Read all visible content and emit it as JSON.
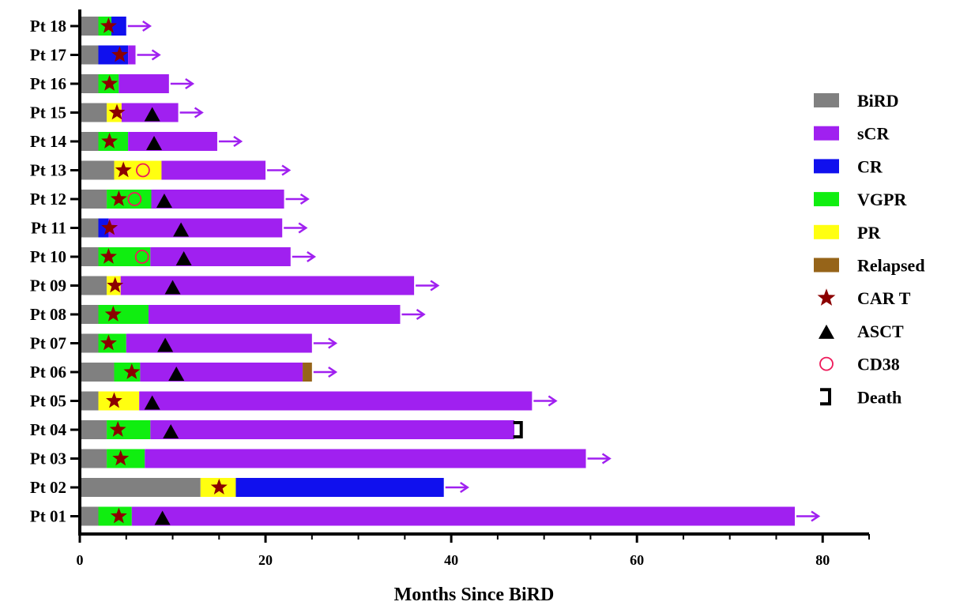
{
  "chart_data": {
    "type": "swimmer",
    "xlabel": "Months Since BiRD",
    "ylabel": "",
    "xlim": [
      0,
      85
    ],
    "xticks": [
      0,
      20,
      40,
      60,
      80
    ],
    "colors": {
      "BiRD": "#808080",
      "sCR": "#a020f0",
      "CR": "#1010ee",
      "VGPR": "#10ee10",
      "PR": "#ffff10",
      "Relapsed": "#966419",
      "CAR T": "#8b0000",
      "ASCT": "#000000",
      "CD38": "#ee1a5a",
      "Death": "#000000",
      "Ongoing": "#a020f0"
    },
    "legend": [
      {
        "label": "BiRD",
        "kind": "box",
        "key": "BiRD"
      },
      {
        "label": "sCR",
        "kind": "box",
        "key": "sCR"
      },
      {
        "label": "CR",
        "kind": "box",
        "key": "CR"
      },
      {
        "label": "VGPR",
        "kind": "box",
        "key": "VGPR"
      },
      {
        "label": "PR",
        "kind": "box",
        "key": "PR"
      },
      {
        "label": "Relapsed",
        "kind": "box",
        "key": "Relapsed"
      },
      {
        "label": "CAR T",
        "kind": "star",
        "key": "CAR T"
      },
      {
        "label": "ASCT",
        "kind": "triangle",
        "key": "ASCT"
      },
      {
        "label": "CD38",
        "kind": "circle",
        "key": "CD38"
      },
      {
        "label": "Death",
        "kind": "bracket",
        "key": "Death"
      }
    ],
    "patients": [
      {
        "label": "Pt 01",
        "segments": [
          [
            "BiRD",
            0,
            2
          ],
          [
            "VGPR",
            2,
            5.6
          ],
          [
            "sCR",
            5.6,
            77
          ]
        ],
        "car_t": 4.2,
        "asct": 8.9,
        "cd38": null,
        "ongoing": true,
        "death": null
      },
      {
        "label": "Pt 02",
        "segments": [
          [
            "BiRD",
            0,
            13
          ],
          [
            "PR",
            13,
            16.8
          ],
          [
            "CR",
            16.8,
            39.2
          ]
        ],
        "car_t": 15,
        "asct": null,
        "cd38": null,
        "ongoing": true,
        "death": null
      },
      {
        "label": "Pt 03",
        "segments": [
          [
            "BiRD",
            0,
            2.9
          ],
          [
            "VGPR",
            2.9,
            7
          ],
          [
            "sCR",
            7,
            54.5
          ]
        ],
        "car_t": 4.4,
        "asct": null,
        "cd38": null,
        "ongoing": true,
        "death": null
      },
      {
        "label": "Pt 04",
        "segments": [
          [
            "BiRD",
            0,
            2.9
          ],
          [
            "VGPR",
            2.9,
            7.6
          ],
          [
            "sCR",
            7.6,
            46.8
          ]
        ],
        "car_t": 4.1,
        "asct": 9.8,
        "cd38": null,
        "ongoing": false,
        "death": 47.2
      },
      {
        "label": "Pt 05",
        "segments": [
          [
            "BiRD",
            0,
            2
          ],
          [
            "PR",
            2,
            6.4
          ],
          [
            "sCR",
            6.4,
            48.7
          ]
        ],
        "car_t": 3.7,
        "asct": 7.8,
        "cd38": null,
        "ongoing": true,
        "death": null
      },
      {
        "label": "Pt 06",
        "segments": [
          [
            "BiRD",
            0,
            3.7
          ],
          [
            "VGPR",
            3.7,
            6.5
          ],
          [
            "sCR",
            6.5,
            24
          ],
          [
            "Relapsed",
            24,
            25
          ]
        ],
        "car_t": 5.6,
        "asct": 10.4,
        "cd38": null,
        "ongoing": true,
        "death": null
      },
      {
        "label": "Pt 07",
        "segments": [
          [
            "BiRD",
            0,
            2
          ],
          [
            "VGPR",
            2,
            5
          ],
          [
            "sCR",
            5,
            25
          ]
        ],
        "car_t": 3.1,
        "asct": 9.2,
        "cd38": null,
        "ongoing": true,
        "death": null
      },
      {
        "label": "Pt 08",
        "segments": [
          [
            "BiRD",
            0,
            2
          ],
          [
            "VGPR",
            2,
            7.4
          ],
          [
            "sCR",
            7.4,
            34.5
          ]
        ],
        "car_t": 3.6,
        "asct": null,
        "cd38": null,
        "ongoing": true,
        "death": null
      },
      {
        "label": "Pt 09",
        "segments": [
          [
            "BiRD",
            0,
            2.9
          ],
          [
            "PR",
            2.9,
            4.4
          ],
          [
            "sCR",
            4.4,
            36
          ]
        ],
        "car_t": 3.8,
        "asct": 10,
        "cd38": null,
        "ongoing": true,
        "death": null
      },
      {
        "label": "Pt 10",
        "segments": [
          [
            "BiRD",
            0,
            2
          ],
          [
            "VGPR",
            2,
            7.6
          ],
          [
            "sCR",
            7.6,
            22.7
          ]
        ],
        "car_t": 3.1,
        "asct": 11.2,
        "cd38": 6.7,
        "ongoing": true,
        "death": null
      },
      {
        "label": "Pt 11",
        "segments": [
          [
            "BiRD",
            0,
            2
          ],
          [
            "CR",
            2,
            3.1
          ],
          [
            "sCR",
            3.1,
            21.8
          ]
        ],
        "car_t": 3.2,
        "asct": 10.9,
        "cd38": null,
        "ongoing": true,
        "death": null
      },
      {
        "label": "Pt 12",
        "segments": [
          [
            "BiRD",
            0,
            2.9
          ],
          [
            "VGPR",
            2.9,
            7.7
          ],
          [
            "sCR",
            7.7,
            22
          ]
        ],
        "car_t": 4.2,
        "asct": 9.1,
        "cd38": 5.9,
        "ongoing": true,
        "death": null
      },
      {
        "label": "Pt 13",
        "segments": [
          [
            "BiRD",
            0,
            3.7
          ],
          [
            "PR",
            3.7,
            8.8
          ],
          [
            "sCR",
            8.8,
            20
          ]
        ],
        "car_t": 4.7,
        "asct": null,
        "cd38": 6.8,
        "ongoing": true,
        "death": null
      },
      {
        "label": "Pt 14",
        "segments": [
          [
            "BiRD",
            0,
            2
          ],
          [
            "VGPR",
            2,
            5.2
          ],
          [
            "sCR",
            5.2,
            14.8
          ]
        ],
        "car_t": 3.2,
        "asct": 8,
        "cd38": null,
        "ongoing": true,
        "death": null
      },
      {
        "label": "Pt 15",
        "segments": [
          [
            "BiRD",
            0,
            2.9
          ],
          [
            "PR",
            2.9,
            4.5
          ],
          [
            "sCR",
            4.5,
            10.6
          ]
        ],
        "car_t": 4,
        "asct": 7.8,
        "cd38": null,
        "ongoing": true,
        "death": null
      },
      {
        "label": "Pt 16",
        "segments": [
          [
            "BiRD",
            0,
            2
          ],
          [
            "VGPR",
            2,
            4.2
          ],
          [
            "sCR",
            4.2,
            9.6
          ]
        ],
        "car_t": 3.2,
        "asct": null,
        "cd38": null,
        "ongoing": true,
        "death": null
      },
      {
        "label": "Pt 17",
        "segments": [
          [
            "BiRD",
            0,
            2
          ],
          [
            "CR",
            2,
            5.2
          ],
          [
            "sCR",
            5.2,
            6
          ]
        ],
        "car_t": 4.3,
        "asct": null,
        "cd38": null,
        "ongoing": true,
        "death": null
      },
      {
        "label": "Pt 18",
        "segments": [
          [
            "BiRD",
            0,
            2
          ],
          [
            "VGPR",
            2,
            3.4
          ],
          [
            "CR",
            3.4,
            5
          ]
        ],
        "car_t": 3.1,
        "asct": null,
        "cd38": null,
        "ongoing": true,
        "death": null
      }
    ]
  }
}
